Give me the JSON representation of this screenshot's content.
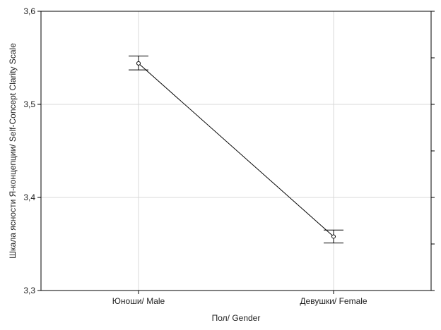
{
  "chart_data": {
    "type": "line",
    "title": "",
    "xlabel": "Пол/ Gender",
    "ylabel": "Шкала ясности Я-концепции/ Self-Concept Clarity Scale",
    "categories": [
      "Юноши/ Male",
      "Девушки/ Female"
    ],
    "series": [
      {
        "values": [
          3.544,
          3.358
        ],
        "error_low": [
          3.537,
          3.351
        ],
        "error_high": [
          3.552,
          3.365
        ]
      }
    ],
    "ylim": [
      3.3,
      3.6
    ],
    "yticks": [
      "3,3",
      "3,4",
      "3,5",
      "3,6"
    ],
    "grid": true,
    "legend": "none",
    "line_color": "#000000",
    "grid_color": "#d9d9d9"
  }
}
